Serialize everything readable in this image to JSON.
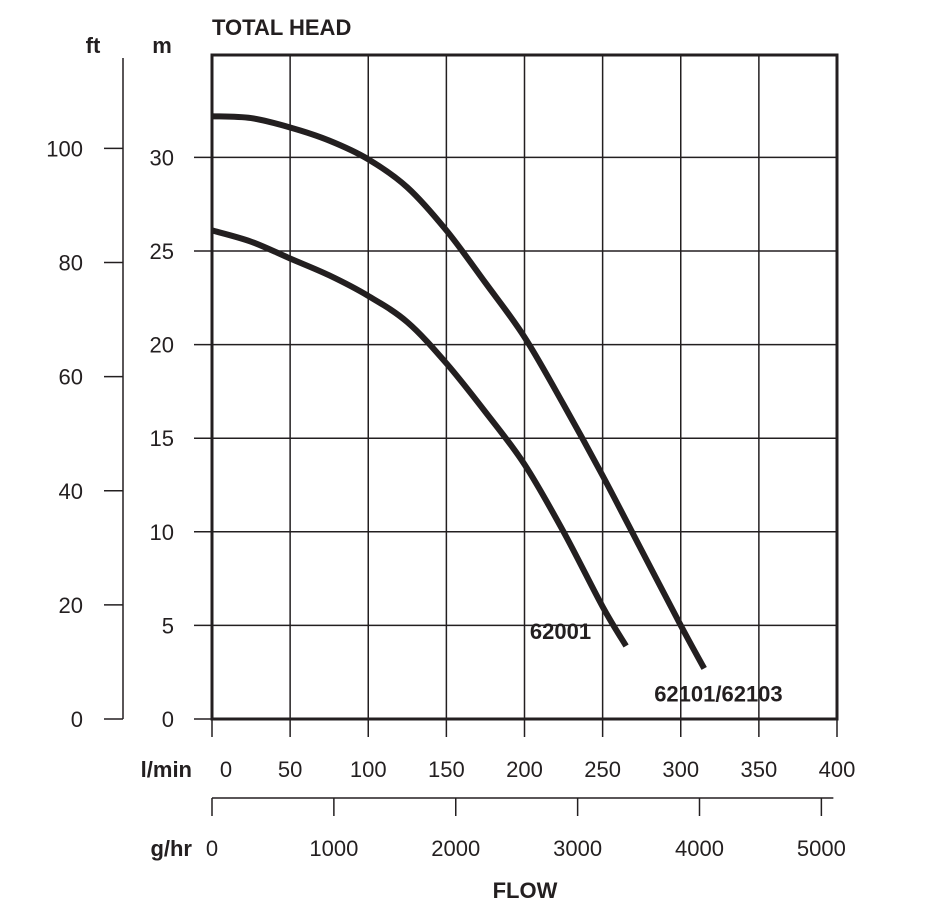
{
  "chart_data": {
    "type": "line",
    "title": "TOTAL HEAD",
    "xlabel": "FLOW",
    "x_units": [
      "l/min",
      "g/hr"
    ],
    "y_units": [
      "ft",
      "m"
    ],
    "xlim": [
      0,
      400
    ],
    "ylim": [
      0,
      35
    ],
    "x_ticks_lmin": [
      "0",
      "50",
      "100",
      "150",
      "200",
      "250",
      "300",
      "350",
      "400"
    ],
    "x_ticks_ghr": [
      "0",
      "1000",
      "2000",
      "3000",
      "4000",
      "5000"
    ],
    "y_ticks_m": [
      "0",
      "5",
      "10",
      "15",
      "20",
      "25",
      "30"
    ],
    "y_ticks_ft": [
      "0",
      "20",
      "40",
      "60",
      "80",
      "100"
    ],
    "grid": true,
    "series": [
      {
        "name": "62101/62103",
        "x": [
          0,
          25,
          50,
          75,
          100,
          125,
          150,
          175,
          200,
          225,
          250,
          275,
          300,
          315
        ],
        "y": [
          32.2,
          32.1,
          31.6,
          30.9,
          29.9,
          28.4,
          26.1,
          23.3,
          20.4,
          16.8,
          13.0,
          9.0,
          5.0,
          2.7
        ]
      },
      {
        "name": "62001",
        "x": [
          0,
          25,
          50,
          75,
          100,
          125,
          150,
          175,
          200,
          225,
          250,
          265
        ],
        "y": [
          26.1,
          25.5,
          24.6,
          23.7,
          22.6,
          21.2,
          19.0,
          16.4,
          13.6,
          10.0,
          6.0,
          3.9
        ]
      }
    ]
  }
}
